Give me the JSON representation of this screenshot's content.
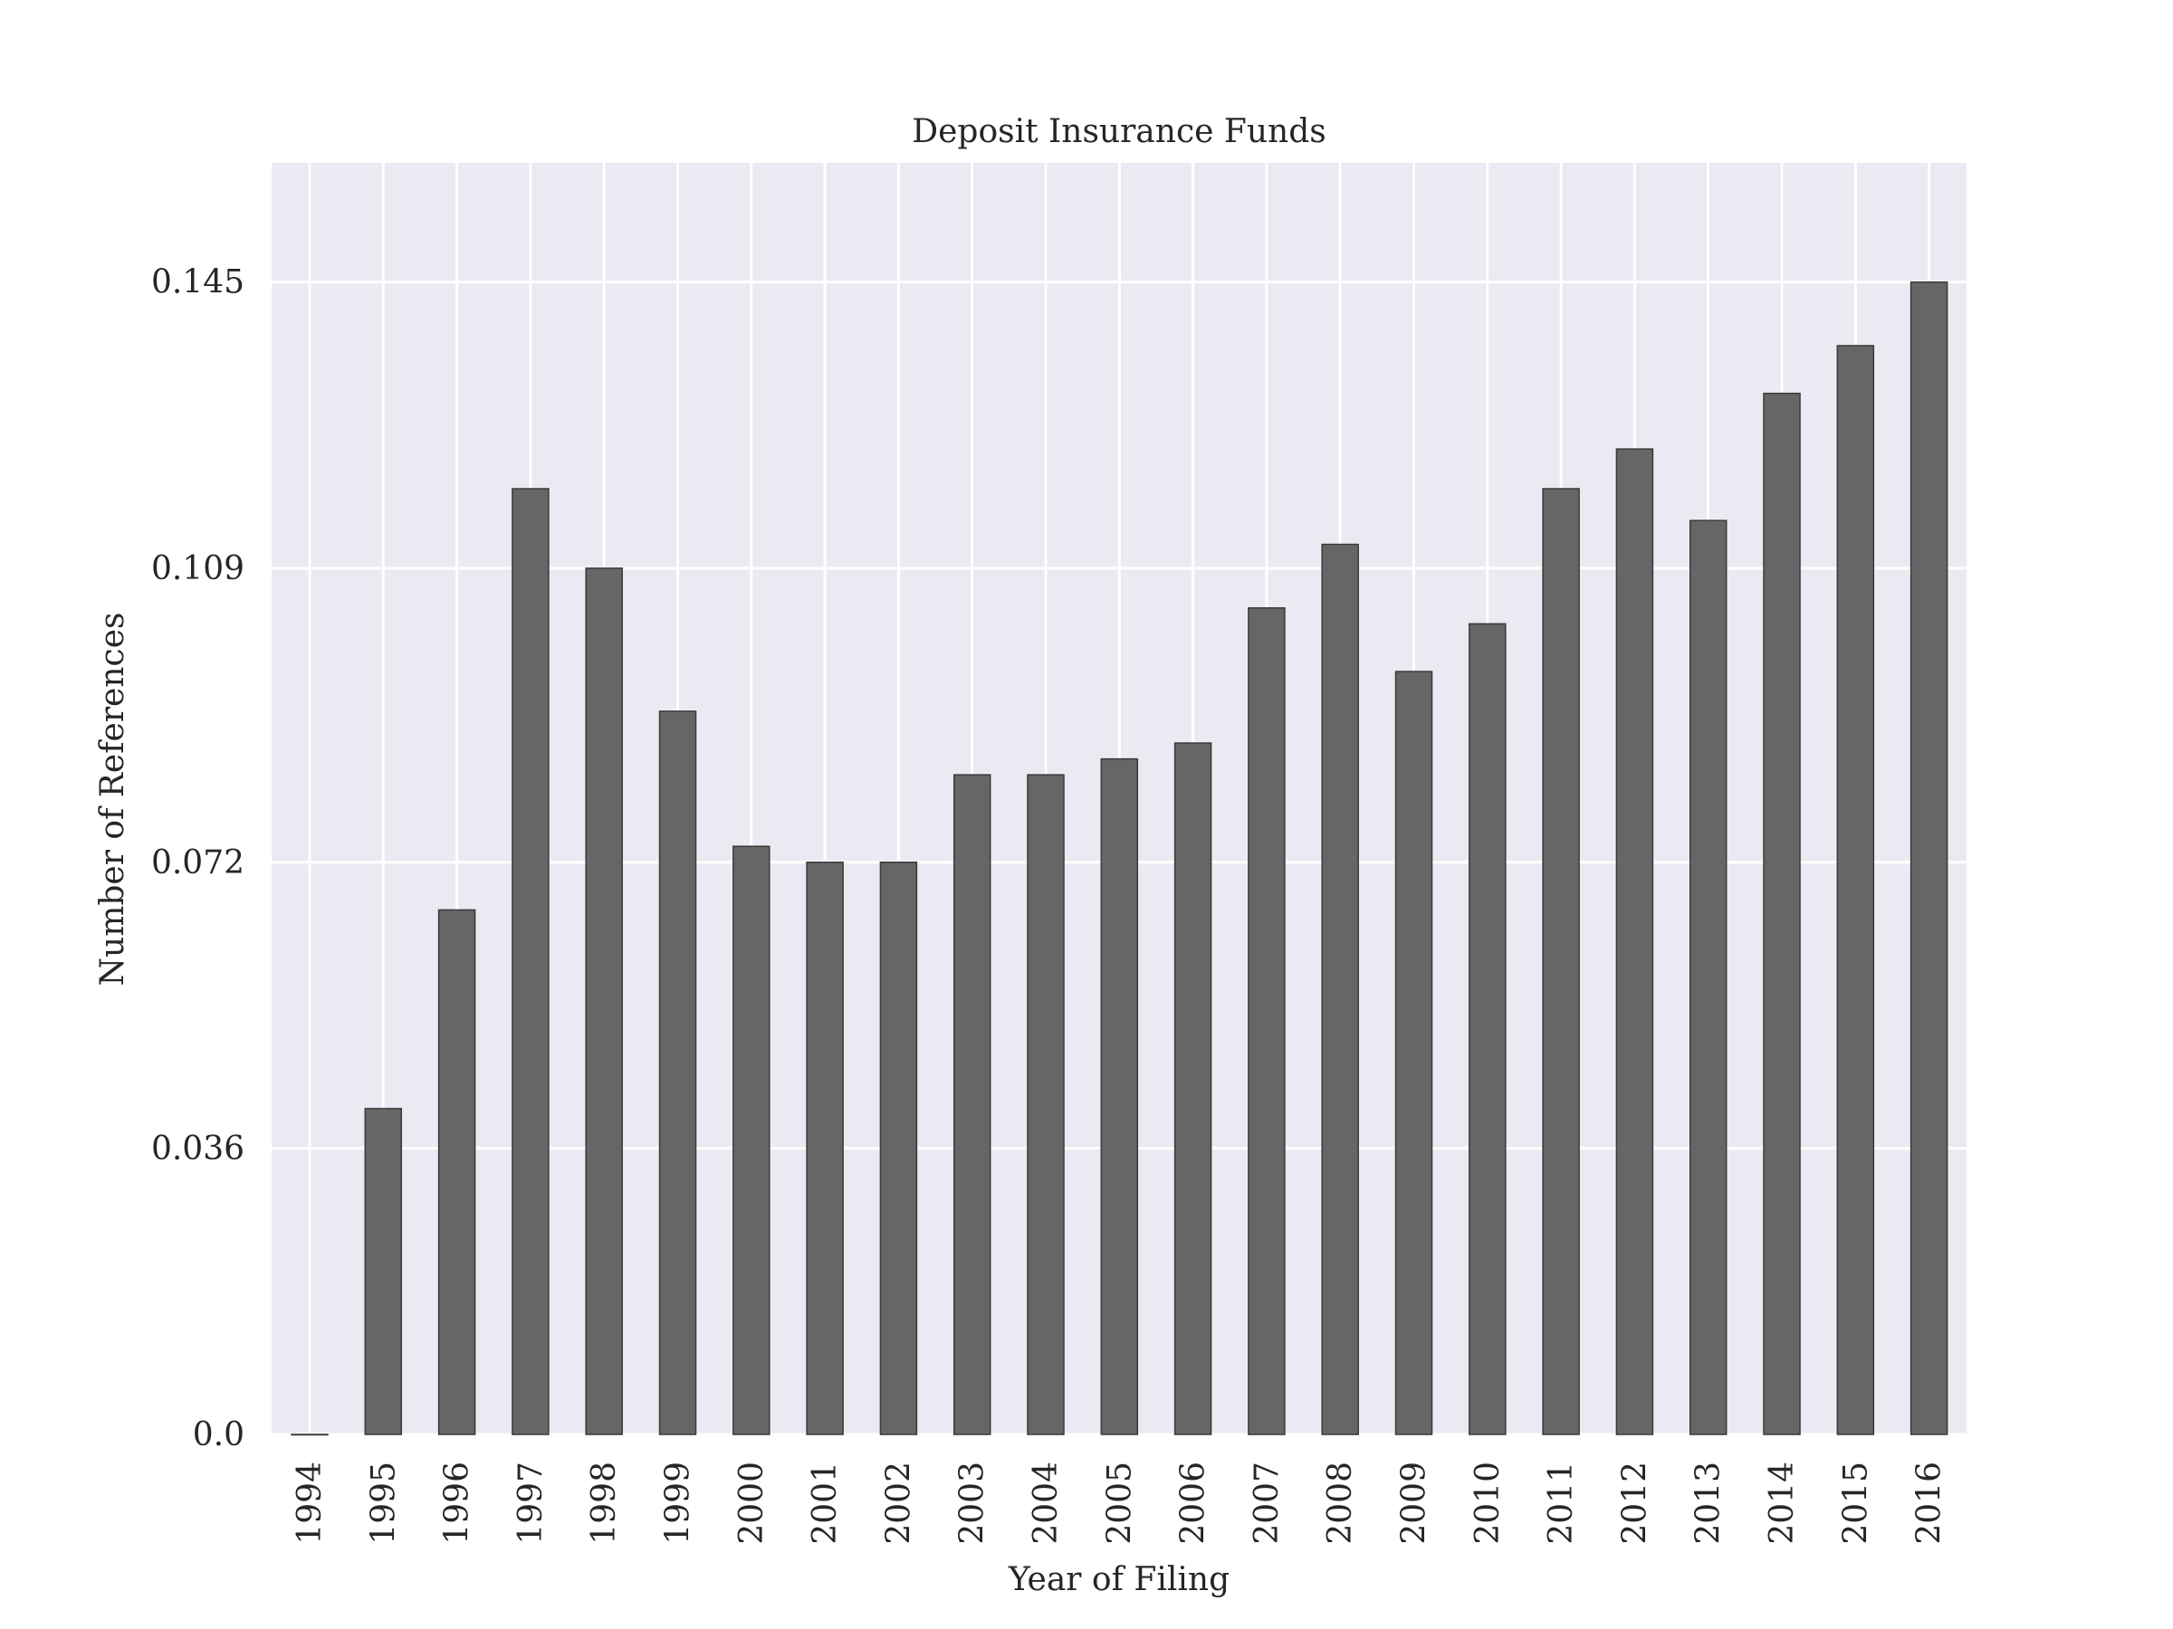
{
  "chart_data": {
    "type": "bar",
    "title": "Deposit Insurance Funds",
    "xlabel": "Year of Filing",
    "ylabel": "Number of References",
    "categories": [
      "1994",
      "1995",
      "1996",
      "1997",
      "1998",
      "1999",
      "2000",
      "2001",
      "2002",
      "2003",
      "2004",
      "2005",
      "2006",
      "2007",
      "2008",
      "2009",
      "2010",
      "2011",
      "2012",
      "2013",
      "2014",
      "2015",
      "2016"
    ],
    "values": [
      0.0,
      0.041,
      0.066,
      0.119,
      0.109,
      0.091,
      0.074,
      0.072,
      0.072,
      0.083,
      0.083,
      0.085,
      0.087,
      0.104,
      0.112,
      0.096,
      0.102,
      0.119,
      0.124,
      0.115,
      0.131,
      0.137,
      0.145
    ],
    "yticks": [
      0.0,
      0.036,
      0.072,
      0.109,
      0.145
    ],
    "ytick_labels": [
      "0.0",
      "0.036",
      "0.072",
      "0.109",
      "0.145"
    ],
    "ylim": [
      0,
      0.16
    ],
    "grid": true,
    "colors": {
      "background": "#eaeaf2",
      "bar": "#666666",
      "bar_edge": "#3a3a3a",
      "grid": "#ffffff"
    }
  }
}
